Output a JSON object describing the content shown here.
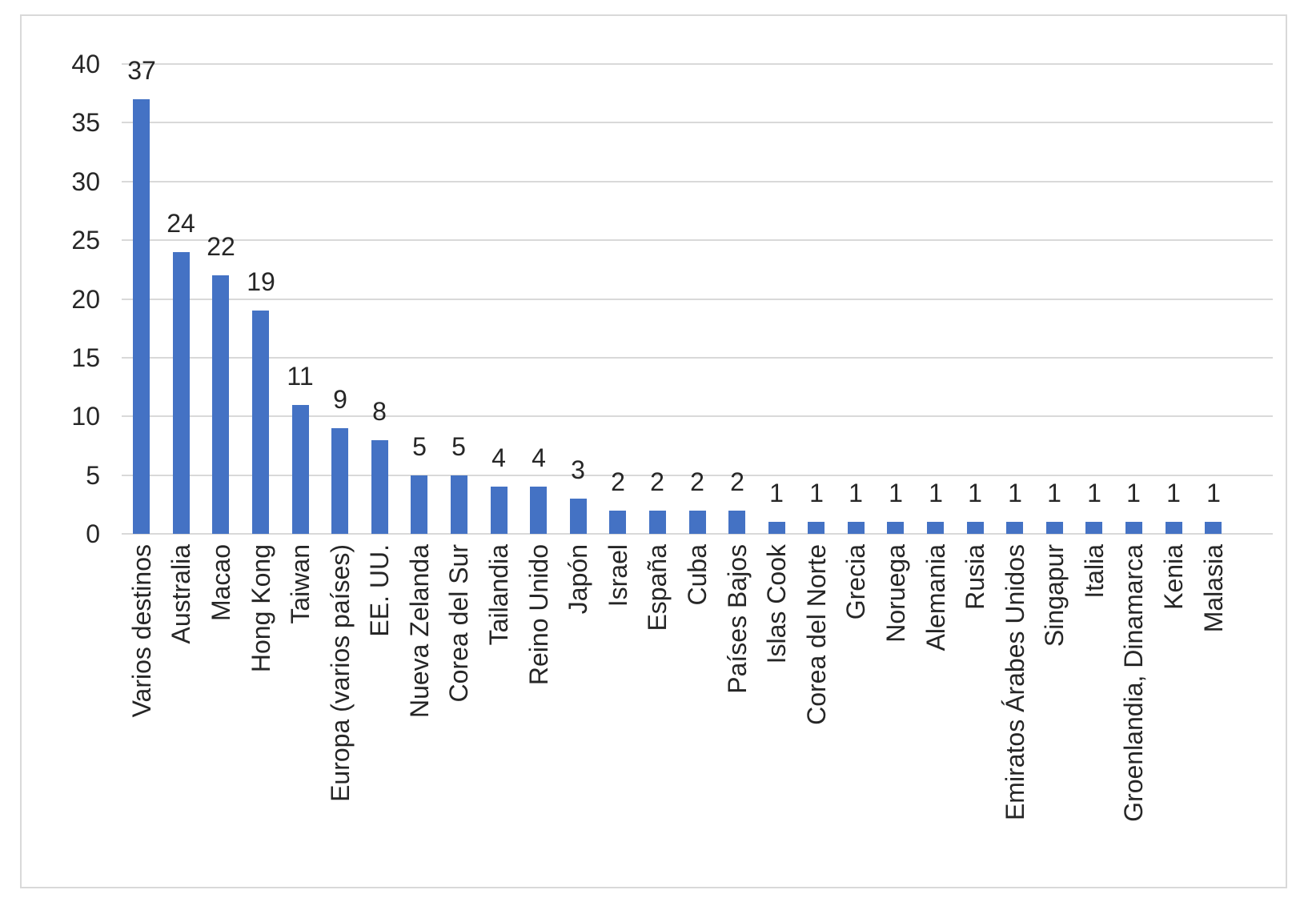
{
  "chart_data": {
    "type": "bar",
    "categories": [
      "Varios destinos",
      "Australia",
      "Macao",
      "Hong Kong",
      "Taiwan",
      "Europa (varios países)",
      "EE. UU.",
      "Nueva Zelanda",
      "Corea del Sur",
      "Tailandia",
      "Reino Unido",
      "Japón",
      "Israel",
      "España",
      "Cuba",
      "Países Bajos",
      "Islas Cook",
      "Corea del Norte",
      "Grecia",
      "Noruega",
      "Alemania",
      "Rusia",
      "Emiratos Árabes Unidos",
      "Singapur",
      "Italia",
      "Groenlandia, Dinamarca",
      "Kenia",
      "Malasia"
    ],
    "values": [
      37,
      24,
      22,
      19,
      11,
      9,
      8,
      5,
      5,
      4,
      4,
      3,
      2,
      2,
      2,
      2,
      1,
      1,
      1,
      1,
      1,
      1,
      1,
      1,
      1,
      1,
      1,
      1
    ],
    "data_labels": [
      37,
      24,
      22,
      19,
      11,
      9,
      8,
      5,
      5,
      4,
      4,
      3,
      2,
      2,
      2,
      2,
      1,
      1,
      1,
      1,
      1,
      1,
      1,
      1,
      1,
      1,
      1,
      1
    ],
    "title": "",
    "xlabel": "",
    "ylabel": "",
    "yticks": [
      0,
      5,
      10,
      15,
      20,
      25,
      30,
      35,
      40
    ],
    "ylim": [
      0,
      40
    ],
    "grid": true,
    "legend": "none",
    "data_label_position": "outside-end",
    "colors": {
      "bar": "#4472C4",
      "gridline": "#D9D9D9",
      "frame_border": "#D9D9D9",
      "text": "#262626",
      "background": "#FFFFFF"
    }
  }
}
